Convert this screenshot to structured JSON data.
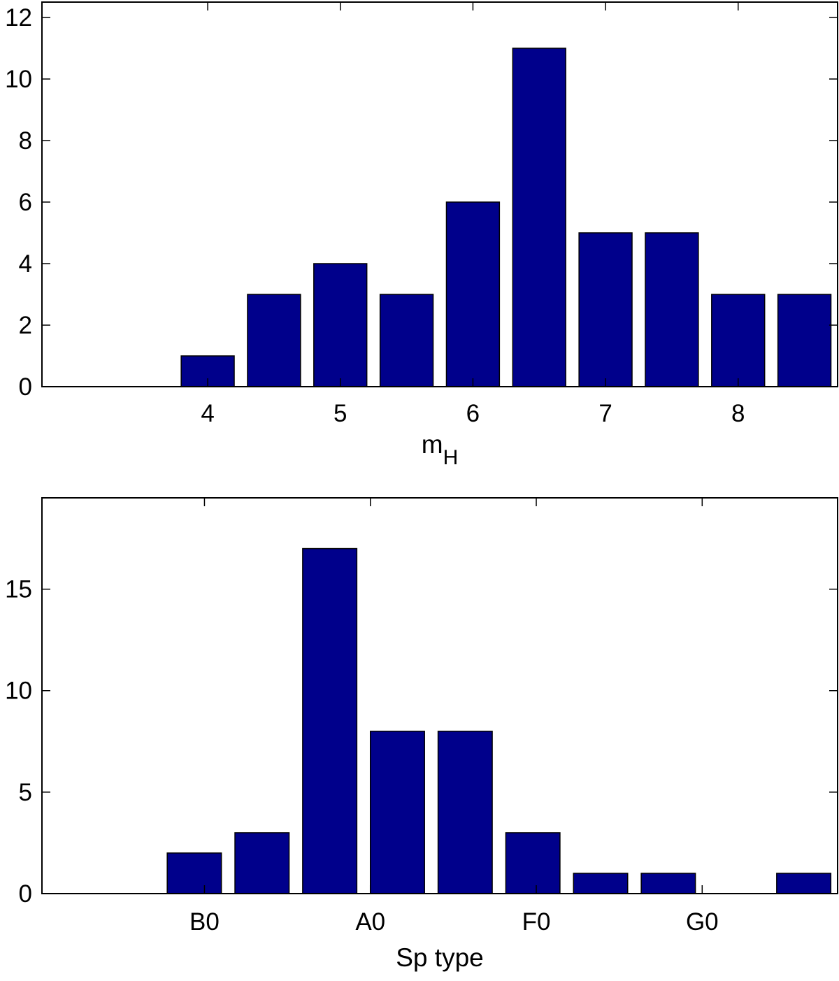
{
  "chart_data": [
    {
      "type": "bar",
      "xlabel": "m",
      "xlabel_subscript": "H",
      "ylabel": "",
      "x": [
        3.5,
        4.0,
        4.5,
        5.0,
        5.5,
        6.0,
        6.5,
        7.0,
        7.5,
        8.0,
        8.5
      ],
      "values": [
        0,
        1,
        3,
        4,
        3,
        6,
        11,
        5,
        5,
        3,
        3
      ],
      "xlim": [
        2.75,
        8.75
      ],
      "ylim": [
        0,
        12.5
      ],
      "xticks": [
        4,
        5,
        6,
        7,
        8
      ],
      "yticks": [
        0,
        2,
        4,
        6,
        8,
        10,
        12
      ],
      "color": "#00008b",
      "grid": false
    },
    {
      "type": "bar",
      "xlabel": "Sp type",
      "ylabel": "",
      "x": [
        1,
        2,
        3,
        4,
        5,
        6,
        7,
        8,
        9,
        10,
        11
      ],
      "values": [
        0,
        2,
        3,
        17,
        8,
        8,
        3,
        1,
        1,
        0,
        1
      ],
      "xlim": [
        -0.25,
        11.5
      ],
      "ylim": [
        0,
        19.5
      ],
      "xtick_positions": [
        2.15,
        4.6,
        7.05,
        9.5
      ],
      "xtick_labels": [
        "B0",
        "A0",
        "F0",
        "G0"
      ],
      "yticks": [
        0,
        5,
        10,
        15
      ],
      "color": "#00008b",
      "grid": false
    }
  ]
}
